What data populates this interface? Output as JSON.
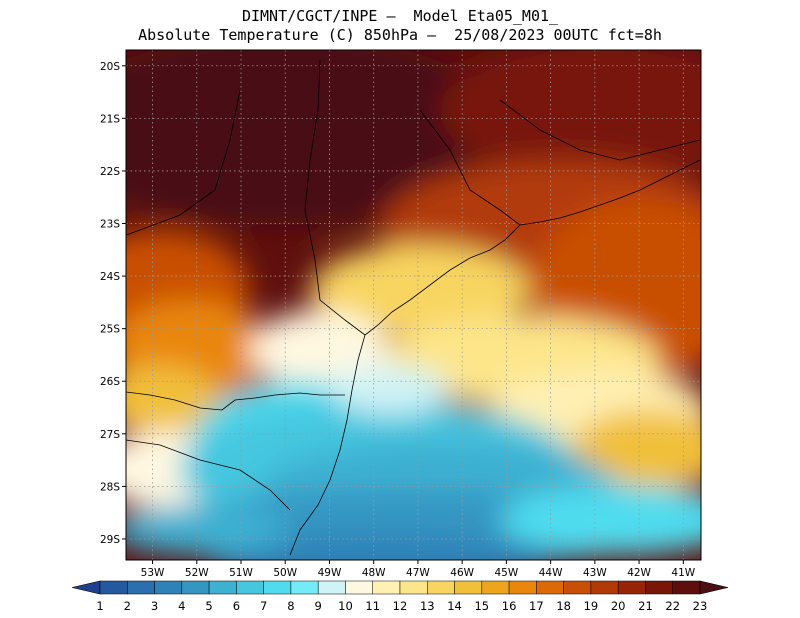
{
  "header": {
    "line1": "DIMNT/CGCT/INPE –  Model Eta05_M01_",
    "line2": "Absolute Temperature (C) 850hPa –  25/08/2023 00UTC fct=8h"
  },
  "axes": {
    "lat_labels": [
      "20S",
      "21S",
      "22S",
      "23S",
      "24S",
      "25S",
      "26S",
      "27S",
      "28S",
      "29S"
    ],
    "lon_labels": [
      "53W",
      "52W",
      "51W",
      "50W",
      "49W",
      "48W",
      "47W",
      "46W",
      "45W",
      "44W",
      "43W",
      "42W",
      "41W"
    ]
  },
  "colorbar": {
    "labels": [
      "1",
      "2",
      "3",
      "4",
      "5",
      "6",
      "7",
      "8",
      "9",
      "10",
      "11",
      "12",
      "13",
      "14",
      "15",
      "16",
      "17",
      "18",
      "19",
      "20",
      "21",
      "22",
      "23"
    ],
    "colors": [
      "#1f3f8f",
      "#24599f",
      "#2a6fae",
      "#2f82b8",
      "#3696c2",
      "#3eb0d2",
      "#45c7e0",
      "#4fdcef",
      "#73ecf7",
      "#cff3f6",
      "#fff8e1",
      "#fff0b3",
      "#fde58a",
      "#f8d560",
      "#f1c03a",
      "#eda51c",
      "#e9860b",
      "#dd6906",
      "#c94f06",
      "#b23a07",
      "#952506",
      "#781607",
      "#5e0f0d",
      "#4a0e14"
    ]
  },
  "map": {
    "lon_range": [
      -53.6,
      -40.6
    ],
    "lat_range": [
      -29.4,
      -19.7
    ],
    "grid": "dotted",
    "field": "temperature_850hPa"
  }
}
